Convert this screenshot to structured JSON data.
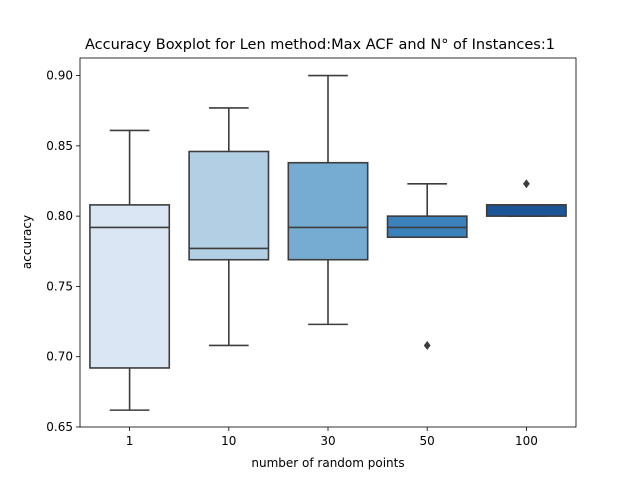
{
  "chart_data": {
    "type": "box",
    "title": "Accuracy Boxplot for Len method:Max ACF and N° of Instances:1",
    "xlabel": "number of random points",
    "ylabel": "accuracy",
    "ylim": [
      0.65,
      0.9125
    ],
    "yticks": [
      "0.65",
      "0.70",
      "0.75",
      "0.80",
      "0.85",
      "0.90"
    ],
    "grid": false,
    "categories": [
      "1",
      "10",
      "30",
      "50",
      "100"
    ],
    "boxes": [
      {
        "category": "1",
        "whisker_low": 0.662,
        "q1": 0.692,
        "median": 0.792,
        "q3": 0.808,
        "whisker_high": 0.861,
        "outliers": [],
        "color": "#dae6f3"
      },
      {
        "category": "10",
        "whisker_low": 0.708,
        "q1": 0.769,
        "median": 0.777,
        "q3": 0.846,
        "whisker_high": 0.877,
        "outliers": [],
        "color": "#b3cfe4"
      },
      {
        "category": "30",
        "whisker_low": 0.723,
        "q1": 0.769,
        "median": 0.792,
        "q3": 0.838,
        "whisker_high": 0.9,
        "outliers": [],
        "color": "#76abd2"
      },
      {
        "category": "50",
        "whisker_low": 0.785,
        "q1": 0.785,
        "median": 0.792,
        "q3": 0.8,
        "whisker_high": 0.823,
        "outliers": [
          0.708
        ],
        "color": "#3b82bd"
      },
      {
        "category": "100",
        "whisker_low": 0.8,
        "q1": 0.8,
        "median": 0.808,
        "q3": 0.808,
        "whisker_high": 0.808,
        "outliers": [
          0.823
        ],
        "color": "#1c5597"
      }
    ]
  }
}
